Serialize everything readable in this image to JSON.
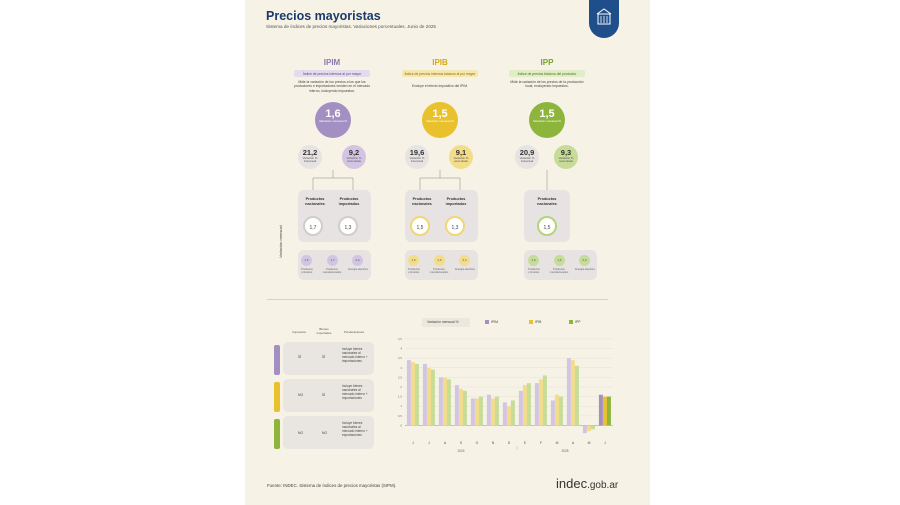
{
  "header": {
    "title": "Precios mayoristas",
    "subtitle": "Sistema de índices de precios mayoristas. Variaciones porcentuales. Junio de 2025"
  },
  "vertical_label": "Variación mensual",
  "indices": [
    {
      "name": "IPIM",
      "box_label": "Índice de precios internos al por mayor",
      "description": "Mide la variación de los precios a los que los productores e importadores venden en el mercado interno, incluyendo impuestos.",
      "monthly": "1,6",
      "monthly_label": "Variación mensual %",
      "yoy": "21,2",
      "yoy_label": "Variación % interanual",
      "ytd": "9,2",
      "ytd_label": "Variación % acumulada",
      "products": [
        {
          "label": "Productos nacionales",
          "value": "1,7"
        },
        {
          "label": "Productos importados",
          "value": "1,3"
        }
      ],
      "sub": [
        {
          "value": "1,6",
          "label": "Productos primarios"
        },
        {
          "value": "1,7",
          "label": "Productos manufacturados"
        },
        {
          "value": "2,4",
          "label": "Energía eléctrica"
        }
      ]
    },
    {
      "name": "IPIB",
      "box_label": "Índice de precios internos básicos al por mayor",
      "description": "Excluye el efecto impositivo del IPIM.",
      "monthly": "1,5",
      "monthly_label": "Variación mensual %",
      "yoy": "19,6",
      "yoy_label": "Variación % interanual",
      "ytd": "9,1",
      "ytd_label": "Variación % acumulada",
      "products": [
        {
          "label": "Productos nacionales",
          "value": "1,5"
        },
        {
          "label": "Productos importados",
          "value": "1,3"
        }
      ],
      "sub": [
        {
          "value": "1,6",
          "label": "Productos primarios"
        },
        {
          "value": "1,6",
          "label": "Productos manufacturados"
        },
        {
          "value": "2,4",
          "label": "Energía eléctrica"
        }
      ]
    },
    {
      "name": "IPP",
      "box_label": "Índice de precios básicos del productor",
      "description": "Mide la variación de los precios de la producción local, excluyendo impuestos.",
      "monthly": "1,5",
      "monthly_label": "Variación mensual %",
      "yoy": "20,9",
      "yoy_label": "Variación % interanual",
      "ytd": "9,3",
      "ytd_label": "Variación % acumulada",
      "products": [
        {
          "label": "Productos nacionales",
          "value": "1,5"
        }
      ],
      "sub": [
        {
          "value": "1,6",
          "label": "Productos primarios"
        },
        {
          "value": "1,6",
          "label": "Productos manufacturados"
        },
        {
          "value": "2,4",
          "label": "Energía eléctrica"
        }
      ]
    }
  ],
  "table": {
    "headers": [
      "Impuestos",
      "Bienes importados",
      "Ponderaciones"
    ],
    "rows": [
      {
        "tag": "IPIM",
        "impuestos": "SÍ",
        "importados": "SÍ",
        "ponderaciones": "Incluye bienes nacionales al mercado interno + importaciones"
      },
      {
        "tag": "IPIB",
        "impuestos": "NO",
        "importados": "SÍ",
        "ponderaciones": "Incluye bienes nacionales al mercado interno + importaciones"
      },
      {
        "tag": "IPP",
        "impuestos": "NO",
        "importados": "NO",
        "ponderaciones": "Incluye bienes nacionales al mercado interno + exportaciones"
      }
    ]
  },
  "colors": {
    "ipim": "#a48fc2",
    "ipib": "#e8c12c",
    "ipp": "#8db53c",
    "ipim_light": "#d2c5e3",
    "ipib_light": "#f3dd8a",
    "ipp_light": "#c6dc98",
    "title": "#1b3a6b"
  },
  "chart_data": {
    "type": "bar",
    "title": "",
    "legend_title": "Variación mensual %",
    "legend_position": "top",
    "categories": [
      "J",
      "J",
      "A",
      "S",
      "O",
      "N",
      "D",
      "E",
      "F",
      "M",
      "A",
      "M",
      "J"
    ],
    "group_labels": [
      "2024",
      "2025"
    ],
    "ylim": [
      -0.6,
      4.6
    ],
    "yticks": [
      0,
      0.5,
      1.0,
      1.5,
      2.0,
      2.5,
      3.0,
      3.5,
      4.0,
      4.5
    ],
    "series": [
      {
        "name": "IPIM",
        "values": [
          3.4,
          3.2,
          2.5,
          2.1,
          1.4,
          1.6,
          1.2,
          1.8,
          2.2,
          1.3,
          3.5,
          -0.4,
          1.6
        ]
      },
      {
        "name": "IPIB",
        "values": [
          3.3,
          3.0,
          2.5,
          1.9,
          1.4,
          1.4,
          1.0,
          2.1,
          2.4,
          1.6,
          3.4,
          -0.3,
          1.5
        ]
      },
      {
        "name": "IPP",
        "values": [
          3.2,
          2.9,
          2.4,
          1.8,
          1.5,
          1.5,
          1.3,
          2.2,
          2.6,
          1.5,
          3.1,
          -0.2,
          1.5
        ]
      }
    ]
  },
  "footer": {
    "source": "Fuente: INDEC. Sistema de índices de precios mayoristas (SIPM).",
    "logo_main": "indec",
    "logo_suffix": ".gob.ar"
  }
}
